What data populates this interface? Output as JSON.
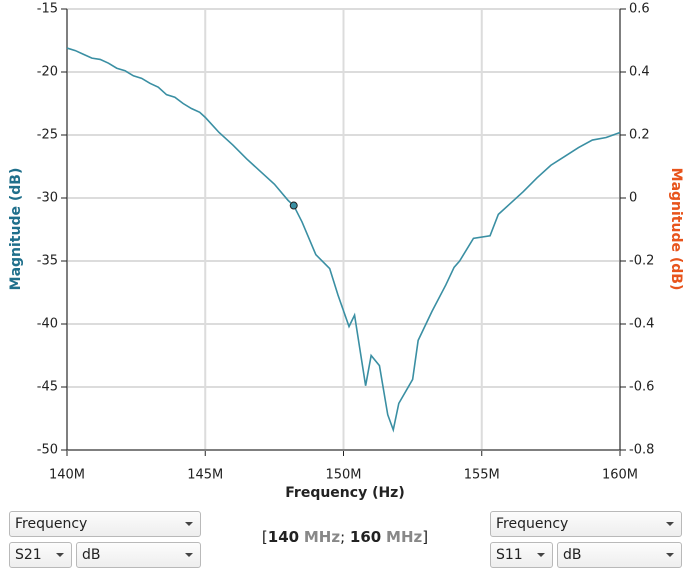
{
  "chart_data": {
    "type": "line",
    "xlabel": "Frequency (Hz)",
    "ylabel": "Magnitude (dB)",
    "y2label": "Magnitude (dB)",
    "x": [
      140,
      140.3,
      140.6,
      140.9,
      141.2,
      141.5,
      141.8,
      142.1,
      142.4,
      142.7,
      143,
      143.3,
      143.6,
      143.9,
      144.2,
      144.5,
      144.8,
      145,
      145.5,
      146,
      146.5,
      147,
      147.5,
      148,
      148.2,
      148.5,
      149,
      149.5,
      149.8,
      150.2,
      150.4,
      150.8,
      151,
      151.3,
      151.6,
      151.8,
      152,
      152.5,
      152.7,
      153.2,
      153.7,
      154,
      154.2,
      154.7,
      155.3,
      155.6,
      156,
      156.5,
      157,
      157.5,
      158,
      158.5,
      159,
      159.5,
      160
    ],
    "series": [
      {
        "color": "#3a8fa3",
        "values": [
          -18.1,
          -18.3,
          -18.6,
          -18.9,
          -19.0,
          -19.3,
          -19.7,
          -19.9,
          -20.3,
          -20.5,
          -20.9,
          -21.2,
          -21.8,
          -22.0,
          -22.5,
          -22.9,
          -23.2,
          -23.6,
          -24.8,
          -25.8,
          -26.9,
          -27.9,
          -28.9,
          -30.2,
          -30.6,
          -31.9,
          -34.5,
          -35.6,
          -37.7,
          -40.2,
          -39.3,
          -44.9,
          -42.5,
          -43.3,
          -47.2,
          -48.4,
          -46.3,
          -44.4,
          -41.3,
          -39.0,
          -36.9,
          -35.5,
          -35.0,
          -33.2,
          -33.0,
          -31.3,
          -30.5,
          -29.5,
          -28.4,
          -27.4,
          -26.7,
          -26.0,
          -25.4,
          -25.2,
          -24.8
        ]
      }
    ],
    "marker": {
      "x": 148.2,
      "y": -30.6,
      "color": "#3a8fa3"
    },
    "xlim": [
      140,
      160
    ],
    "xticks": [
      {
        "value": 140,
        "label": "140M"
      },
      {
        "value": 145,
        "label": "145M"
      },
      {
        "value": 150,
        "label": "150M"
      },
      {
        "value": 155,
        "label": "155M"
      },
      {
        "value": 160,
        "label": "160M"
      }
    ],
    "ylim": [
      -50,
      -15
    ],
    "yticks": [
      -50,
      -45,
      -40,
      -35,
      -30,
      -25,
      -20,
      -15
    ],
    "y2lim": [
      -0.8,
      0.6
    ],
    "y2ticks": [
      -0.8,
      -0.6,
      -0.4,
      -0.2,
      0,
      0.2,
      0.4,
      0.6
    ],
    "ylabel_color": "#1f6f8b",
    "y2label_color": "#e8541c",
    "grid": true
  },
  "controls": {
    "left": {
      "mode": "Frequency",
      "param": "S21",
      "format": "dB"
    },
    "right": {
      "mode": "Frequency",
      "param": "S11",
      "format": "dB"
    },
    "range": {
      "open": "[",
      "start": "140",
      "unit": "MHz",
      "sep": ";",
      "end": "160",
      "close": "]"
    }
  }
}
